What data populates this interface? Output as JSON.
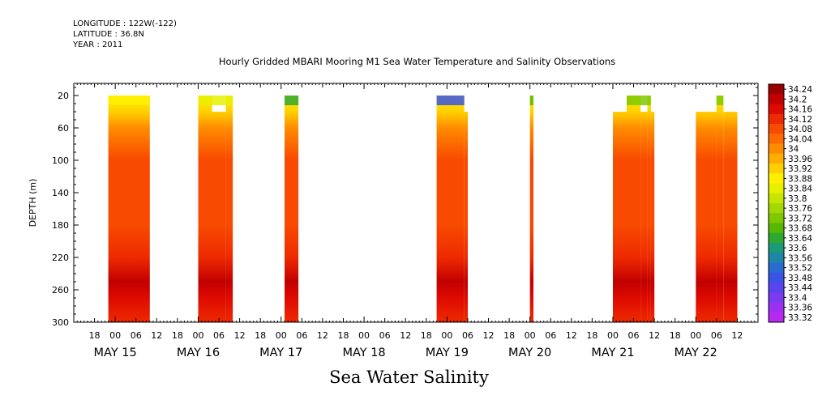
{
  "header": {
    "longitude": "LONGITUDE : 122W(-122)",
    "latitude": "LATITUDE : 36.8N",
    "year": "YEAR : 2011",
    "title": "Hourly Gridded MBARI Mooring M1 Sea Water Temperature and Salinity Observations"
  },
  "footer": {
    "variable_title": "Sea Water Salinity"
  },
  "chart_data": {
    "type": "heatmap",
    "title": "Hourly Gridded MBARI Mooring M1 Sea Water Temperature and Salinity Observations",
    "xlabel": "",
    "ylabel": "DEPTH (m)",
    "y_ticks": [
      20,
      60,
      100,
      140,
      180,
      220,
      260,
      300
    ],
    "y_range": [
      5,
      300
    ],
    "x_range": [
      "2011-05-14T12:00",
      "2011-05-22T18:00"
    ],
    "x_hour_ticks": [
      "18",
      "00",
      "06",
      "12",
      "18",
      "00",
      "06",
      "12",
      "18",
      "00",
      "06",
      "12",
      "18",
      "00",
      "06",
      "12",
      "18",
      "00",
      "06",
      "12",
      "18",
      "00",
      "06",
      "12",
      "18",
      "00",
      "06",
      "12",
      "18",
      "00",
      "06",
      "12"
    ],
    "x_hour_times": [
      "2011-05-14T18:00",
      "2011-05-15T00:00",
      "2011-05-15T06:00",
      "2011-05-15T12:00",
      "2011-05-15T18:00",
      "2011-05-16T00:00",
      "2011-05-16T06:00",
      "2011-05-16T12:00",
      "2011-05-16T18:00",
      "2011-05-17T00:00",
      "2011-05-17T06:00",
      "2011-05-17T12:00",
      "2011-05-17T18:00",
      "2011-05-18T00:00",
      "2011-05-18T06:00",
      "2011-05-18T12:00",
      "2011-05-18T18:00",
      "2011-05-19T00:00",
      "2011-05-19T06:00",
      "2011-05-19T12:00",
      "2011-05-19T18:00",
      "2011-05-20T00:00",
      "2011-05-20T06:00",
      "2011-05-20T12:00",
      "2011-05-20T18:00",
      "2011-05-21T00:00",
      "2011-05-21T06:00",
      "2011-05-21T12:00",
      "2011-05-21T18:00",
      "2011-05-22T00:00",
      "2011-05-22T06:00",
      "2011-05-22T12:00"
    ],
    "x_date_labels": [
      "MAY 15",
      "MAY 16",
      "MAY 17",
      "MAY 18",
      "MAY 19",
      "MAY 20",
      "MAY 21",
      "MAY 22"
    ],
    "x_date_times": [
      "2011-05-15T00:00",
      "2011-05-16T00:00",
      "2011-05-17T00:00",
      "2011-05-18T00:00",
      "2011-05-19T00:00",
      "2011-05-20T00:00",
      "2011-05-21T00:00",
      "2011-05-22T00:00"
    ],
    "data_blocks": [
      {
        "start": "2011-05-14T22:00",
        "end": "2011-05-15T10:00",
        "top_depth": 20
      },
      {
        "start": "2011-05-16T00:00",
        "end": "2011-05-16T04:00",
        "top_depth": 20
      },
      {
        "start": "2011-05-16T04:00",
        "end": "2011-05-16T08:00",
        "top_depth": 40
      },
      {
        "start": "2011-05-16T08:00",
        "end": "2011-05-16T10:00",
        "top_depth": 20
      },
      {
        "start": "2011-05-17T01:00",
        "end": "2011-05-17T05:00",
        "top_depth": 20
      },
      {
        "start": "2011-05-18T21:00",
        "end": "2011-05-19T05:00",
        "top_depth": 20
      },
      {
        "start": "2011-05-19T05:00",
        "end": "2011-05-19T06:00",
        "top_depth": 40
      },
      {
        "start": "2011-05-20T00:00",
        "end": "2011-05-20T01:00",
        "top_depth": 20
      },
      {
        "start": "2011-05-21T00:00",
        "end": "2011-05-21T04:00",
        "top_depth": 40
      },
      {
        "start": "2011-05-21T04:00",
        "end": "2011-05-21T08:00",
        "top_depth": 20
      },
      {
        "start": "2011-05-21T08:00",
        "end": "2011-05-21T10:00",
        "top_depth": 40
      },
      {
        "start": "2011-05-21T10:00",
        "end": "2011-05-21T11:00",
        "top_depth": 20
      },
      {
        "start": "2011-05-21T11:00",
        "end": "2011-05-21T12:00",
        "top_depth": 40
      },
      {
        "start": "2011-05-22T00:00",
        "end": "2011-05-22T06:00",
        "top_depth": 40
      },
      {
        "start": "2011-05-22T06:00",
        "end": "2011-05-22T08:00",
        "top_depth": 20
      },
      {
        "start": "2011-05-22T08:00",
        "end": "2011-05-22T12:00",
        "top_depth": 40
      }
    ],
    "surface_salinity": [
      {
        "time": "2011-05-14T22:00",
        "value": 33.9
      },
      {
        "time": "2011-05-16T00:00",
        "value": 33.84
      },
      {
        "time": "2011-05-17T01:00",
        "value": 33.66
      },
      {
        "time": "2011-05-18T21:00",
        "value": 33.48
      },
      {
        "time": "2011-05-20T00:00",
        "value": 33.68
      },
      {
        "time": "2011-05-21T00:00",
        "value": 33.72
      },
      {
        "time": "2011-05-22T00:00",
        "value": 33.74
      }
    ],
    "salinity_profile": [
      {
        "depth": 20,
        "value": 33.88
      },
      {
        "depth": 40,
        "value": 33.94
      },
      {
        "depth": 60,
        "value": 34.0
      },
      {
        "depth": 80,
        "value": 34.06
      },
      {
        "depth": 100,
        "value": 34.08
      },
      {
        "depth": 140,
        "value": 34.1
      },
      {
        "depth": 180,
        "value": 34.1
      },
      {
        "depth": 220,
        "value": 34.14
      },
      {
        "depth": 250,
        "value": 34.22
      },
      {
        "depth": 270,
        "value": 34.18
      },
      {
        "depth": 300,
        "value": 34.14
      }
    ],
    "colorbar": {
      "levels": [
        "34.24",
        "34.2",
        "34.16",
        "34.12",
        "34.08",
        "34.04",
        "34",
        "33.96",
        "33.92",
        "33.88",
        "33.84",
        "33.8",
        "33.76",
        "33.72",
        "33.68",
        "33.64",
        "33.6",
        "33.56",
        "33.52",
        "33.48",
        "33.44",
        "33.4",
        "33.36",
        "33.32"
      ],
      "colors": [
        "#9a0000",
        "#c20000",
        "#dd0a00",
        "#ee2a00",
        "#f84a00",
        "#fc6a00",
        "#ff8c00",
        "#ffae00",
        "#ffd000",
        "#fff000",
        "#e8f000",
        "#c6e600",
        "#a4d800",
        "#7ec800",
        "#56b800",
        "#2ea830",
        "#1b9a78",
        "#1f85a8",
        "#2a6bd0",
        "#3a54e6",
        "#5a44f0",
        "#7a3af0",
        "#9a30f0",
        "#b828ee"
      ]
    }
  }
}
